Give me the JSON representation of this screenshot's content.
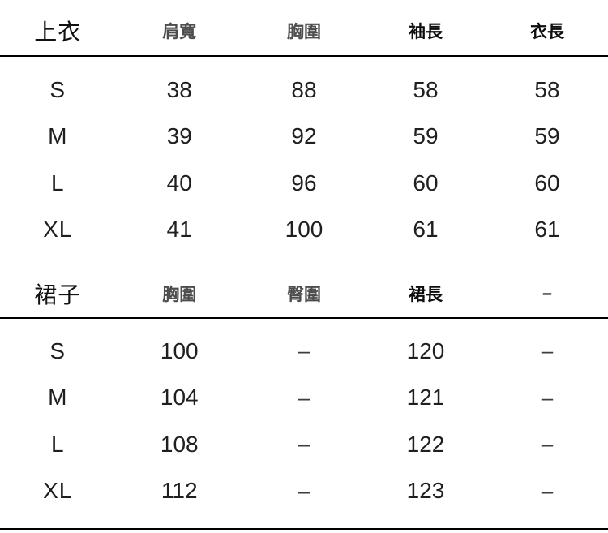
{
  "page": {
    "background_color": "#ffffff",
    "rule_color": "#000000",
    "data_text_color": "#1f1f1f",
    "muted_header_color": "#4d4d4d",
    "strong_header_color": "#0d0d0d"
  },
  "chart_data": [
    {
      "type": "table",
      "title": "上衣",
      "columns": [
        "肩寬",
        "胸圍",
        "袖長",
        "衣長"
      ],
      "column_styles": [
        "muted",
        "muted",
        "strong",
        "strong"
      ],
      "rows": [
        {
          "size": "S",
          "values": [
            "38",
            "88",
            "58",
            "58"
          ]
        },
        {
          "size": "M",
          "values": [
            "39",
            "92",
            "59",
            "59"
          ]
        },
        {
          "size": "L",
          "values": [
            "40",
            "96",
            "60",
            "60"
          ]
        },
        {
          "size": "XL",
          "values": [
            "41",
            "100",
            "61",
            "61"
          ]
        }
      ]
    },
    {
      "type": "table",
      "title": "裙子",
      "columns": [
        "胸圍",
        "臀圍",
        "裙長",
        "–"
      ],
      "column_styles": [
        "muted",
        "muted",
        "strong",
        "strong"
      ],
      "rows": [
        {
          "size": "S",
          "values": [
            "100",
            "–",
            "120",
            "–"
          ]
        },
        {
          "size": "M",
          "values": [
            "104",
            "–",
            "121",
            "–"
          ]
        },
        {
          "size": "L",
          "values": [
            "108",
            "–",
            "122",
            "–"
          ]
        },
        {
          "size": "XL",
          "values": [
            "112",
            "–",
            "123",
            "–"
          ]
        }
      ]
    }
  ]
}
